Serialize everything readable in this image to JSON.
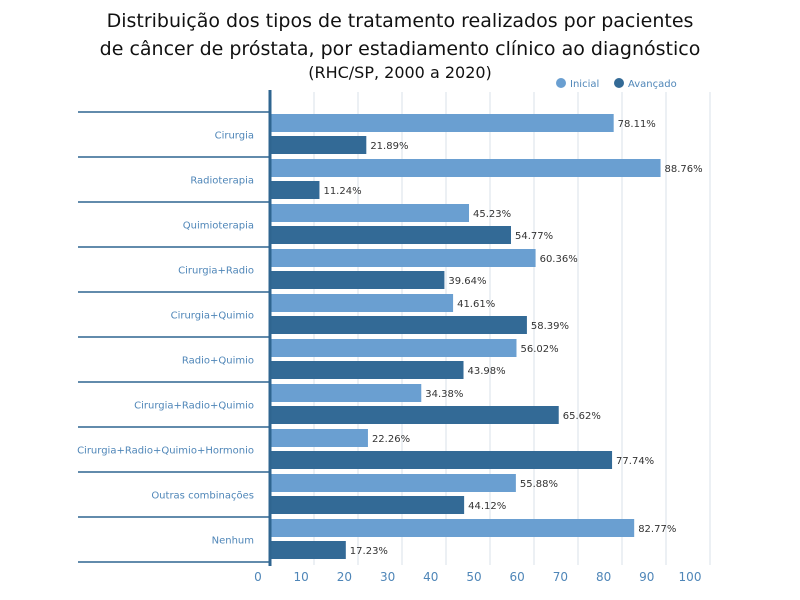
{
  "chart_data": {
    "type": "bar",
    "orientation": "horizontal",
    "title_lines": [
      "Distribuição dos tipos de tratamento realizados por pacientes",
      "de câncer de próstata, por estadiamento clínico ao diagnóstico",
      "(RHC/SP, 2000 a 2020)"
    ],
    "categories": [
      "Cirurgia",
      "Radioterapia",
      "Quimioterapia",
      "Cirurgia+Radio",
      "Cirurgia+Quimio",
      "Radio+Quimio",
      "Cirurgia+Radio+Quimio",
      "Cirurgia+Radio+Quimio+Hormonio",
      "Outras combinações",
      "Nenhum"
    ],
    "series": [
      {
        "name": "Inicial",
        "color": "#6a9fd1",
        "values": [
          78.11,
          88.76,
          45.23,
          60.36,
          41.61,
          56.02,
          34.38,
          22.26,
          55.88,
          82.77
        ]
      },
      {
        "name": "Avançado",
        "color": "#336a96",
        "values": [
          21.89,
          11.24,
          54.77,
          39.64,
          58.39,
          43.98,
          65.62,
          77.74,
          44.12,
          17.23
        ]
      }
    ],
    "value_suffix": "%",
    "xlim": [
      0,
      100
    ],
    "xticks": [
      0,
      10,
      20,
      30,
      40,
      50,
      60,
      70,
      80,
      90,
      100
    ],
    "grid": true,
    "legend": "top-right",
    "axis_color": "#2f6590",
    "label_color": "#4f86b8"
  }
}
